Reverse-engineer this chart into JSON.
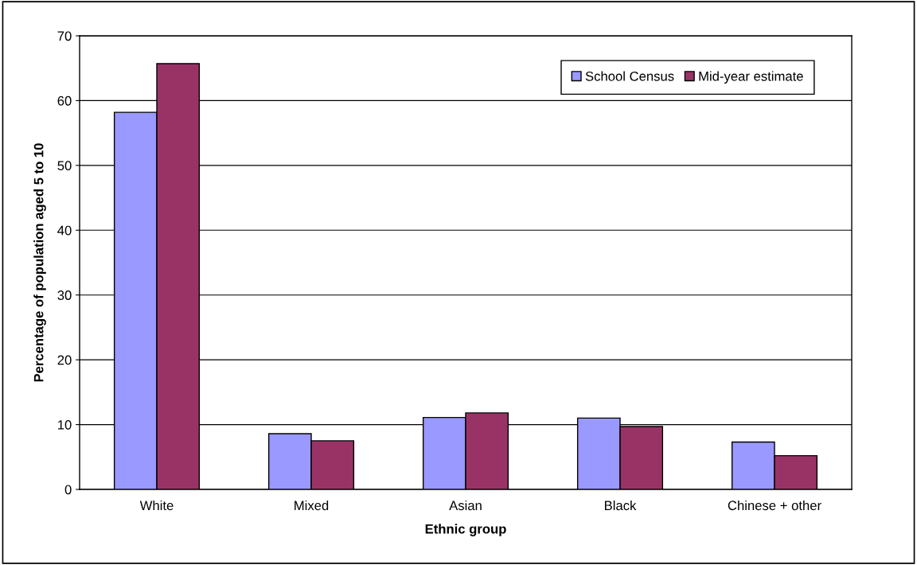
{
  "chart_data": {
    "type": "bar",
    "xlabel": "Ethnic group",
    "ylabel": "Percentage of population aged 5 to 10",
    "categories": [
      "White",
      "Mixed",
      "Asian",
      "Black",
      "Chinese + other"
    ],
    "series": [
      {
        "name": "School Census",
        "color": "#9999ff",
        "values": [
          58.2,
          8.6,
          11.1,
          11.0,
          7.3
        ]
      },
      {
        "name": "Mid-year estimate",
        "color": "#993366",
        "values": [
          65.7,
          7.5,
          11.8,
          9.7,
          5.2
        ]
      }
    ],
    "ylim": [
      0,
      70
    ],
    "yticks": [
      0,
      10,
      20,
      30,
      40,
      50,
      60,
      70
    ],
    "grid": "y",
    "legend": "top right"
  }
}
